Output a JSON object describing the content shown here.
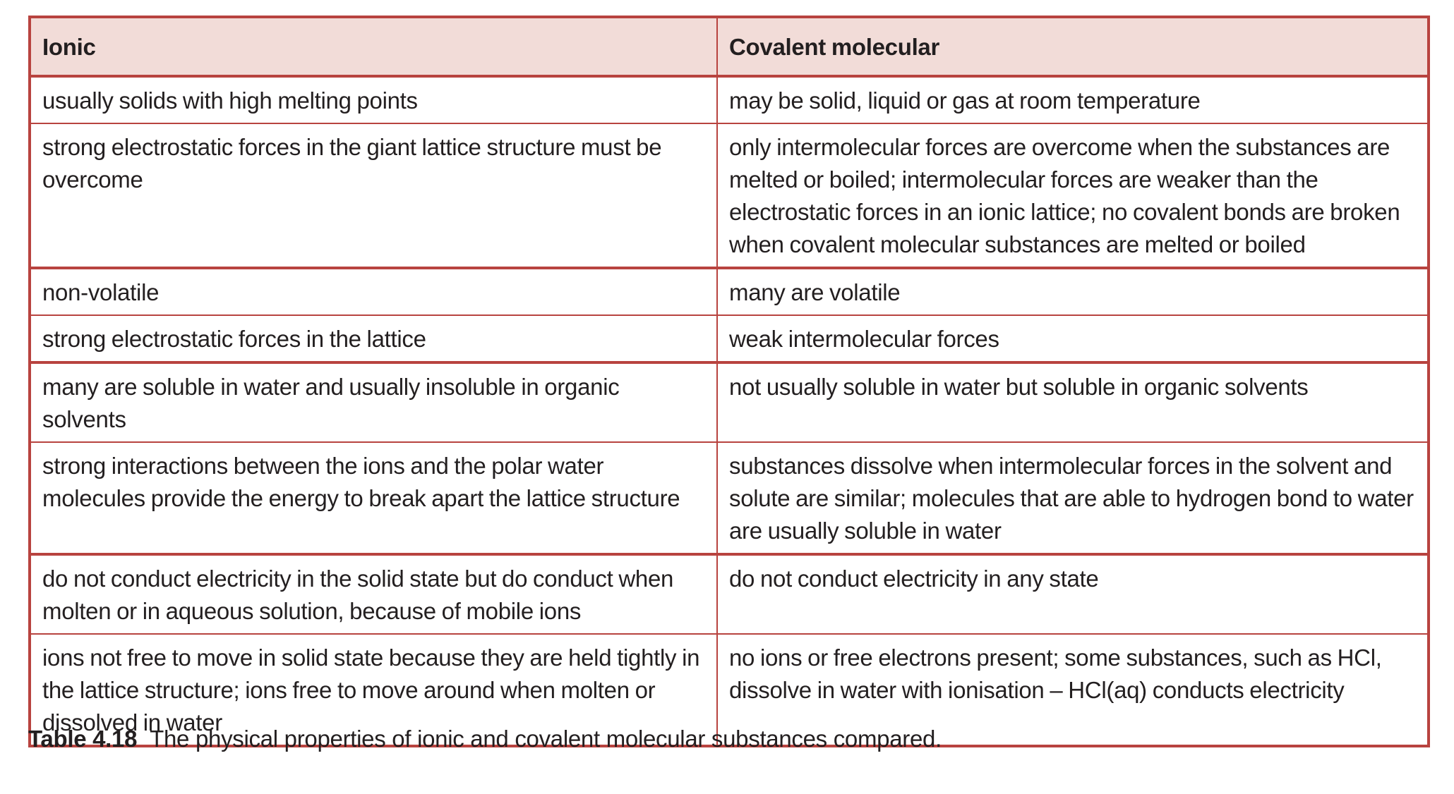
{
  "table": {
    "headers": [
      "Ionic",
      "Covalent molecular"
    ],
    "rows": [
      [
        "usually solids with high melting points",
        "may be solid, liquid or gas at room temperature"
      ],
      [
        "strong electrostatic forces in the giant lattice structure must be overcome",
        "only intermolecular forces are overcome when the substances are melted or boiled; intermolecular forces are weaker than the electrostatic forces in an ionic lattice; no covalent bonds are broken when covalent molecular substances are melted or boiled"
      ],
      [
        "non-volatile",
        "many are volatile"
      ],
      [
        "strong electrostatic forces in the lattice",
        "weak intermolecular forces"
      ],
      [
        "many are soluble in water and usually insoluble in organic solvents",
        "not usually soluble in water but soluble in organic solvents"
      ],
      [
        "strong interactions between the ions and the polar water molecules provide the energy to break apart the lattice structure",
        "substances dissolve when intermolecular forces in the solvent and solute are similar; molecules that are able to hydrogen bond to water are usually soluble in water"
      ],
      [
        "do not conduct electricity in the solid state but do conduct when molten or in aqueous solution, because of mobile ions",
        "do not conduct electricity in any state"
      ],
      [
        "ions not free to move in solid state because they are held tightly in the lattice structure; ions free to move around when molten or dissolved in water",
        "no ions or free electrons present; some substances, such as HCl, dissolve in water with ionisation – HCl(aq) conducts electricity"
      ]
    ]
  },
  "caption": {
    "label": "Table 4.18",
    "text": "The physical properties of ionic and covalent molecular substances compared."
  },
  "colors": {
    "border": "#b8433f",
    "header_bg": "#f2dcd8",
    "text": "#231f20"
  }
}
